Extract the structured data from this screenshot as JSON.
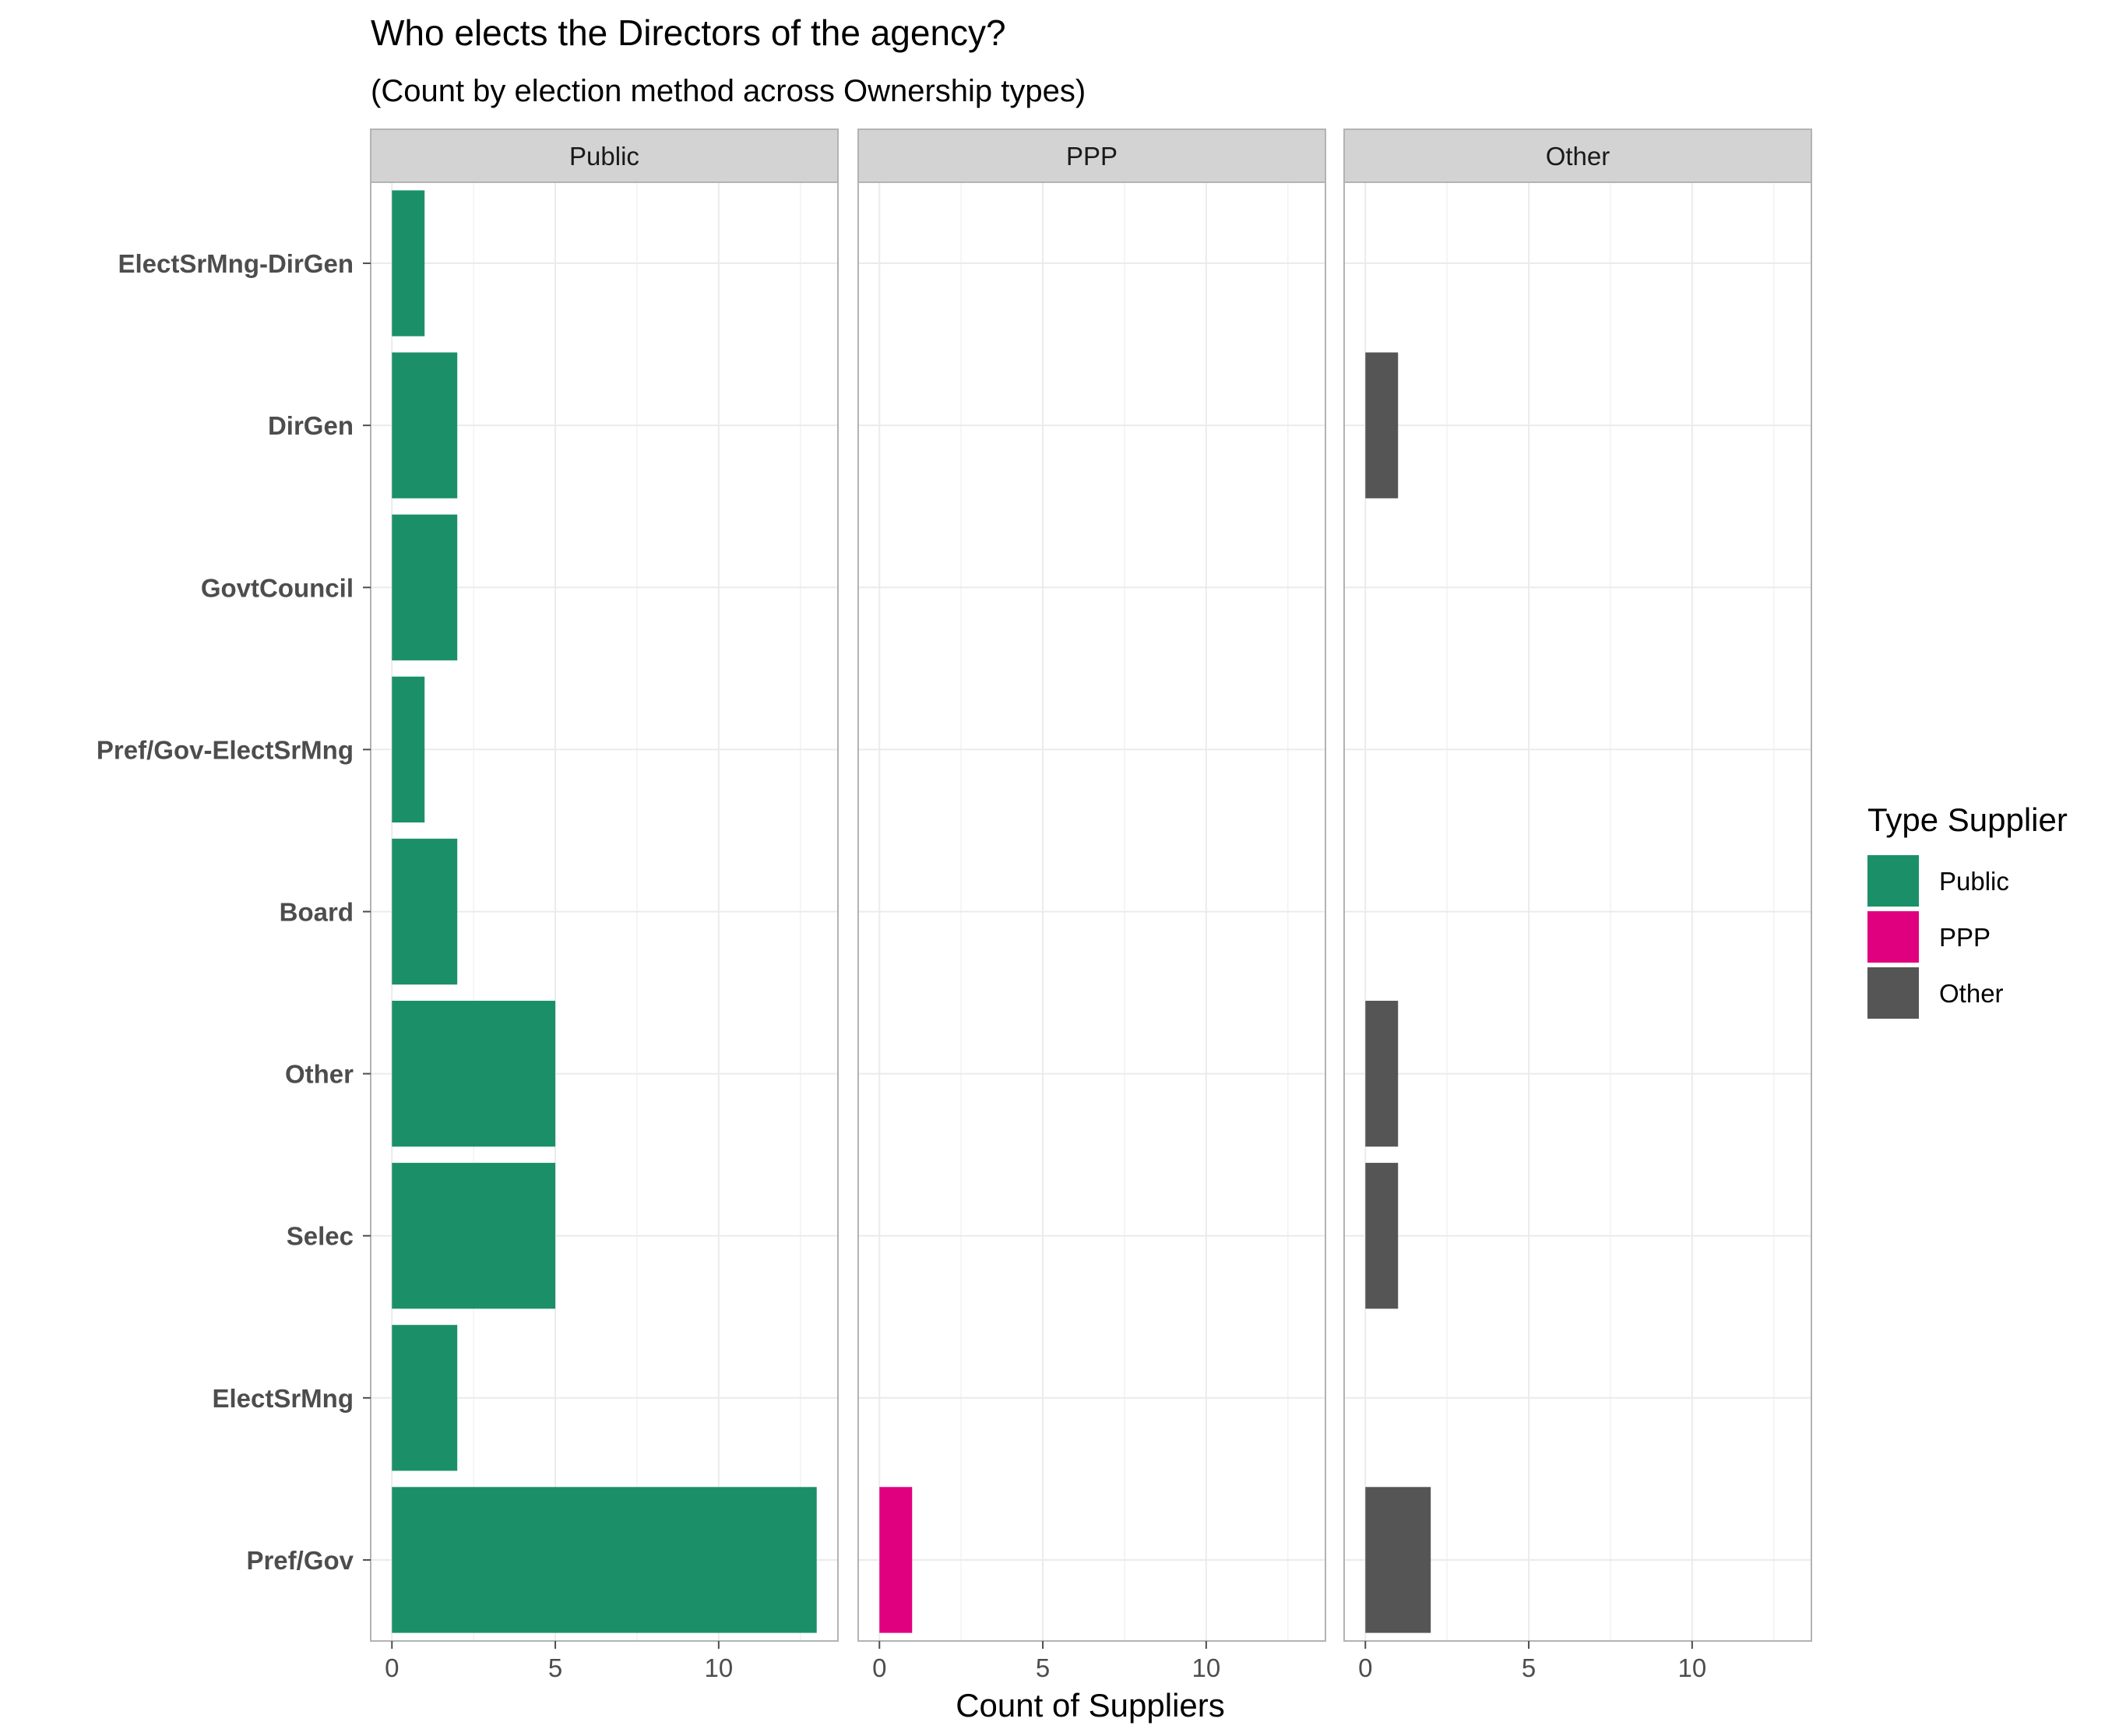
{
  "chart_data": {
    "type": "bar",
    "orientation": "horizontal",
    "title": "Who elects the Directors of the agency?",
    "subtitle": "(Count by election method across Ownership types)",
    "xlabel": "Count of Suppliers",
    "ylabel": "",
    "xlim": [
      -0.65,
      13.65
    ],
    "x_ticks": [
      0,
      5,
      10
    ],
    "grid": true,
    "legend_position": "right",
    "legend_title": "Type Supplier",
    "categories": [
      "ElectSrMng-DirGen",
      "DirGen",
      "GovtCouncil",
      "Pref/Gov-ElectSrMng",
      "Board",
      "Other",
      "Selec",
      "ElectSrMng",
      "Pref/Gov"
    ],
    "facets": [
      {
        "label": "Public",
        "color": "#1b9068",
        "values": [
          1,
          2,
          2,
          1,
          2,
          5,
          5,
          2,
          13
        ]
      },
      {
        "label": "PPP",
        "color": "#e0007f",
        "values": [
          0,
          0,
          0,
          0,
          0,
          0,
          0,
          0,
          1
        ]
      },
      {
        "label": "Other",
        "color": "#555555",
        "values": [
          0,
          1,
          0,
          0,
          0,
          1,
          1,
          0,
          2
        ]
      }
    ],
    "legend": [
      {
        "label": "Public",
        "color": "#1b9068"
      },
      {
        "label": "PPP",
        "color": "#e0007f"
      },
      {
        "label": "Other",
        "color": "#555555"
      }
    ]
  }
}
